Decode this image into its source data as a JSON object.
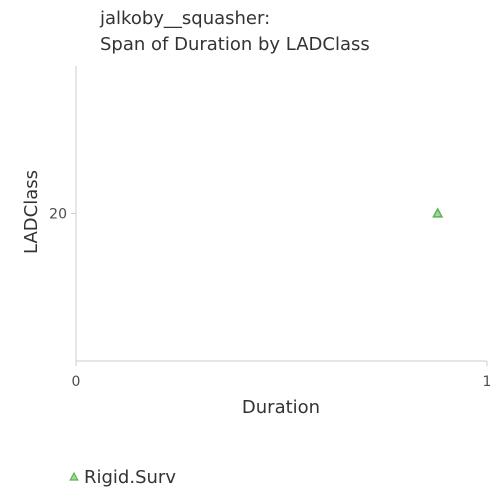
{
  "chart_data": {
    "type": "scatter",
    "title_lines": [
      "jalkoby__squasher:",
      "Span of Duration by LADClass"
    ],
    "xlabel": "Duration",
    "ylabel": "LADClass",
    "xlim": [
      0,
      1
    ],
    "ylim": [
      10,
      30
    ],
    "x_ticks": [
      0,
      1
    ],
    "y_ticks": [
      20
    ],
    "grid": false,
    "legend_position": "bottom-left",
    "series": [
      {
        "name": "Rigid.Surv",
        "marker": "triangle",
        "color": "#5ab552",
        "points": [
          {
            "x": 0.88,
            "y": 20
          }
        ]
      }
    ]
  }
}
